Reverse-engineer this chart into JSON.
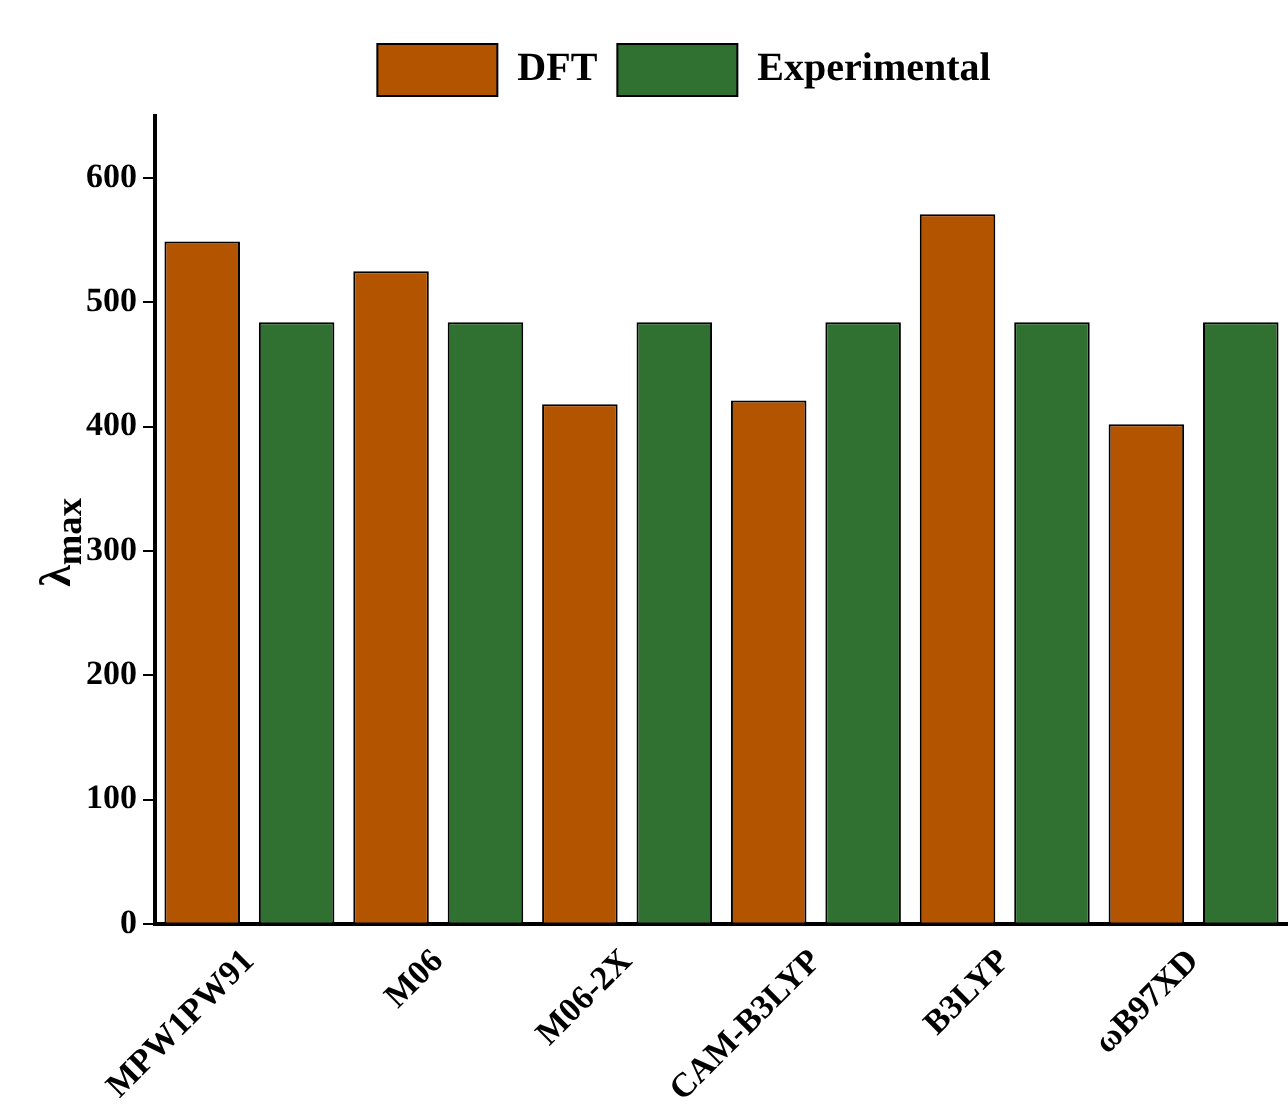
{
  "chart_data": {
    "type": "bar",
    "ylabel": "λ$_{max}$",
    "categories": [
      "MPW1PW91",
      "M06",
      "M06-2X",
      "CAM-B3LYP",
      "B3LYP",
      "ωB97XD"
    ],
    "series": [
      {
        "name": "DFT",
        "color": "#b35500",
        "values": [
          549,
          525,
          418,
          421,
          571,
          402
        ]
      },
      {
        "name": "Experimental",
        "color": "#307030",
        "values": [
          484,
          484,
          484,
          484,
          484,
          484
        ]
      }
    ],
    "ylim": [
      0,
      650
    ],
    "yticks": [
      0,
      100,
      200,
      300,
      400,
      500,
      600
    ],
    "grid": false,
    "legend": "top"
  }
}
